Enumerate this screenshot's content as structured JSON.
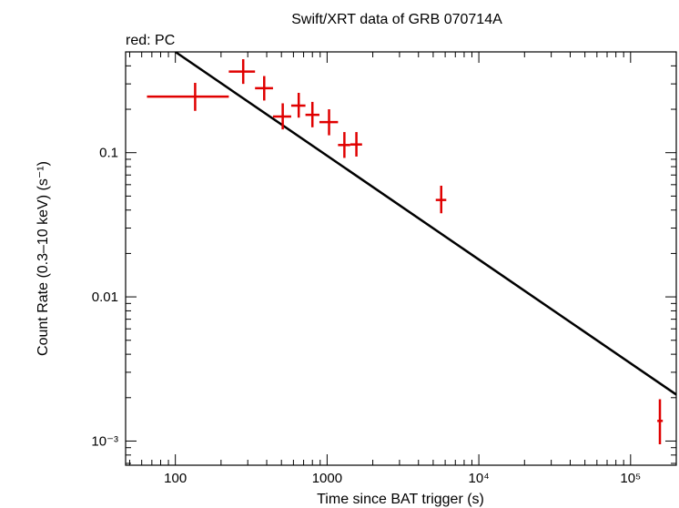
{
  "chart_data": {
    "type": "scatter",
    "title": "Swift/XRT data of GRB 070714A",
    "subtitle": "red: PC",
    "xlabel": "Time since BAT trigger (s)",
    "ylabel": "Count Rate (0.3–10 keV) (s⁻¹)",
    "xscale": "log",
    "yscale": "log",
    "xlim": [
      47,
      200000
    ],
    "ylim": [
      0.00068,
      0.5
    ],
    "x_ticks": [
      {
        "value": 100,
        "label": "100"
      },
      {
        "value": 1000,
        "label": "1000"
      },
      {
        "value": 10000,
        "label": "10⁴"
      },
      {
        "value": 100000,
        "label": "10⁵"
      }
    ],
    "y_ticks": [
      {
        "value": 0.001,
        "label": "10⁻³"
      },
      {
        "value": 0.01,
        "label": "0.01"
      },
      {
        "value": 0.1,
        "label": "0.1"
      }
    ],
    "series": [
      {
        "name": "PC",
        "color": "#e00000",
        "points": [
          {
            "x": 135,
            "xmin": 65,
            "xmax": 225,
            "y": 0.245,
            "ymin": 0.195,
            "ymax": 0.305
          },
          {
            "x": 280,
            "xmin": 225,
            "xmax": 335,
            "y": 0.365,
            "ymin": 0.3,
            "ymax": 0.445
          },
          {
            "x": 385,
            "xmin": 335,
            "xmax": 440,
            "y": 0.28,
            "ymin": 0.23,
            "ymax": 0.34
          },
          {
            "x": 510,
            "xmin": 440,
            "xmax": 580,
            "y": 0.178,
            "ymin": 0.145,
            "ymax": 0.22
          },
          {
            "x": 650,
            "xmin": 580,
            "xmax": 720,
            "y": 0.212,
            "ymin": 0.175,
            "ymax": 0.26
          },
          {
            "x": 800,
            "xmin": 720,
            "xmax": 890,
            "y": 0.183,
            "ymin": 0.15,
            "ymax": 0.225
          },
          {
            "x": 1030,
            "xmin": 890,
            "xmax": 1180,
            "y": 0.163,
            "ymin": 0.132,
            "ymax": 0.2
          },
          {
            "x": 1300,
            "xmin": 1180,
            "xmax": 1420,
            "y": 0.113,
            "ymin": 0.092,
            "ymax": 0.139
          },
          {
            "x": 1560,
            "xmin": 1420,
            "xmax": 1700,
            "y": 0.114,
            "ymin": 0.094,
            "ymax": 0.139
          },
          {
            "x": 5650,
            "xmin": 5200,
            "xmax": 6100,
            "y": 0.047,
            "ymin": 0.038,
            "ymax": 0.059
          },
          {
            "x": 156000,
            "xmin": 150000,
            "xmax": 163000,
            "y": 0.00138,
            "ymin": 0.00095,
            "ymax": 0.00195
          }
        ]
      }
    ],
    "model": {
      "name": "power-law fit",
      "color": "#000000",
      "points": [
        {
          "x": 100,
          "y": 0.5
        },
        {
          "x": 200000,
          "y": 0.0021
        }
      ]
    }
  }
}
